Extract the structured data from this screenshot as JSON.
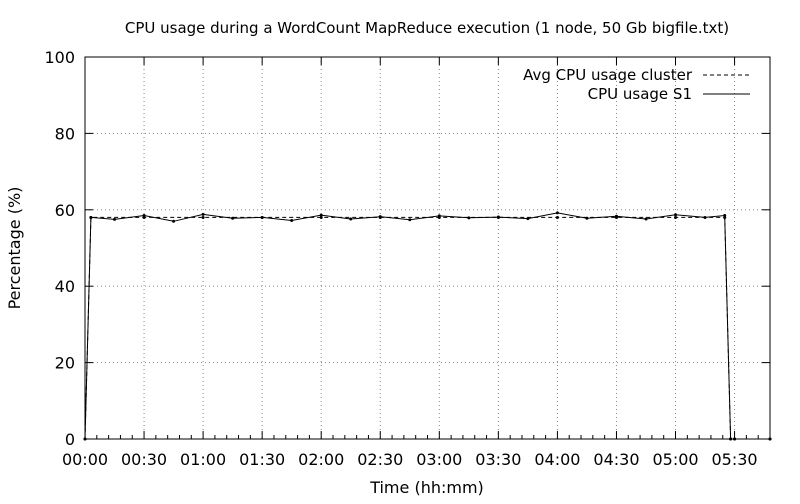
{
  "chart_data": {
    "type": "line",
    "title": "CPU usage during a WordCount MapReduce execution (1 node, 50 Gb bigfile.txt)",
    "xlabel": "Time (hh:mm)",
    "ylabel": "Percentage (%)",
    "x_unit": "hh:mm",
    "xlim": [
      "00:00",
      "05:48"
    ],
    "ylim": [
      0,
      100
    ],
    "x_ticks": [
      "00:00",
      "00:30",
      "01:00",
      "01:30",
      "02:00",
      "02:30",
      "03:00",
      "03:30",
      "04:00",
      "04:30",
      "05:00",
      "05:30"
    ],
    "y_ticks": [
      "0",
      "20",
      "40",
      "60",
      "80",
      "100"
    ],
    "grid": true,
    "grid_style": "dotted",
    "legend_position": "top-right",
    "series": [
      {
        "name": "Avg CPU usage cluster",
        "style": "dashed",
        "color": "#000000",
        "x": [
          "00:00",
          "00:03",
          "00:30",
          "01:00",
          "01:30",
          "02:00",
          "02:30",
          "03:00",
          "03:30",
          "04:00",
          "04:30",
          "05:00",
          "05:25",
          "05:28",
          "05:30",
          "05:48"
        ],
        "values": [
          0,
          58,
          58,
          58,
          58,
          58,
          58,
          58,
          58,
          58,
          58,
          58,
          58,
          0,
          0,
          0
        ]
      },
      {
        "name": "CPU usage S1",
        "style": "solid",
        "color": "#000000",
        "x": [
          "00:00",
          "00:03",
          "00:15",
          "00:30",
          "00:45",
          "01:00",
          "01:15",
          "01:30",
          "01:45",
          "02:00",
          "02:15",
          "02:30",
          "02:45",
          "03:00",
          "03:15",
          "03:30",
          "03:45",
          "04:00",
          "04:15",
          "04:30",
          "04:45",
          "05:00",
          "05:15",
          "05:25",
          "05:28",
          "05:30",
          "05:48"
        ],
        "values": [
          0,
          58,
          57.5,
          58.5,
          57,
          58.8,
          57.8,
          58,
          57.2,
          58.6,
          57.6,
          58.2,
          57.4,
          58.4,
          57.9,
          58.1,
          57.7,
          59.2,
          57.8,
          58.3,
          57.6,
          58.7,
          58.0,
          58.5,
          0,
          0,
          0
        ]
      }
    ]
  }
}
